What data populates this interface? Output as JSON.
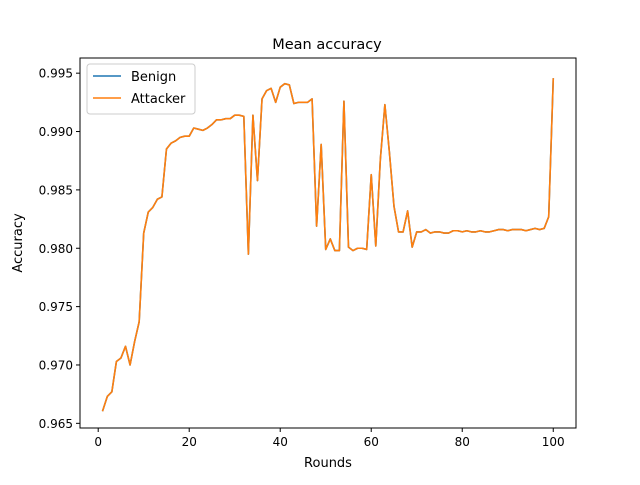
{
  "chart_data": {
    "type": "line",
    "title": "Mean accuracy",
    "xlabel": "Rounds",
    "ylabel": "Accuracy",
    "xlim": [
      -4,
      105
    ],
    "ylim": [
      0.9646,
      0.9963
    ],
    "xticks": [
      0,
      20,
      40,
      60,
      80,
      100
    ],
    "xtick_labels": [
      "0",
      "20",
      "40",
      "60",
      "80",
      "100"
    ],
    "yticks": [
      0.965,
      0.97,
      0.975,
      0.98,
      0.985,
      0.99,
      0.995
    ],
    "ytick_labels": [
      "0.965",
      "0.970",
      "0.975",
      "0.980",
      "0.985",
      "0.990",
      "0.995"
    ],
    "grid": false,
    "legend_position": "top-left",
    "x": [
      1,
      2,
      3,
      4,
      5,
      6,
      7,
      8,
      9,
      10,
      11,
      12,
      13,
      14,
      15,
      16,
      17,
      18,
      19,
      20,
      21,
      22,
      23,
      24,
      25,
      26,
      27,
      28,
      29,
      30,
      31,
      32,
      33,
      34,
      35,
      36,
      37,
      38,
      39,
      40,
      41,
      42,
      43,
      44,
      45,
      46,
      47,
      48,
      49,
      50,
      51,
      52,
      53,
      54,
      55,
      56,
      57,
      58,
      59,
      60,
      61,
      62,
      63,
      64,
      65,
      66,
      67,
      68,
      69,
      70,
      71,
      72,
      73,
      74,
      75,
      76,
      77,
      78,
      79,
      80,
      81,
      82,
      83,
      84,
      85,
      86,
      87,
      88,
      89,
      90,
      91,
      92,
      93,
      94,
      95,
      96,
      97,
      98,
      99,
      100
    ],
    "series": [
      {
        "name": "Benign",
        "color": "#1f77b4",
        "values": [
          0.9661,
          0.9673,
          0.9677,
          0.9703,
          0.9706,
          0.9716,
          0.97,
          0.972,
          0.9737,
          0.9813,
          0.9831,
          0.9835,
          0.9842,
          0.9844,
          0.9885,
          0.989,
          0.9892,
          0.9895,
          0.9896,
          0.9896,
          0.9903,
          0.9902,
          0.9901,
          0.9903,
          0.9906,
          0.991,
          0.991,
          0.9911,
          0.9911,
          0.9914,
          0.9914,
          0.9913,
          0.9795,
          0.9914,
          0.9858,
          0.9928,
          0.9935,
          0.9937,
          0.9925,
          0.9938,
          0.9941,
          0.994,
          0.9924,
          0.9925,
          0.9925,
          0.9925,
          0.9928,
          0.9819,
          0.9889,
          0.9799,
          0.9808,
          0.9798,
          0.9798,
          0.9926,
          0.9801,
          0.9798,
          0.98,
          0.98,
          0.9799,
          0.9863,
          0.9802,
          0.9876,
          0.9923,
          0.9882,
          0.9836,
          0.9814,
          0.9814,
          0.9832,
          0.9801,
          0.9814,
          0.9814,
          0.9816,
          0.9813,
          0.9814,
          0.9814,
          0.9813,
          0.9813,
          0.9815,
          0.9815,
          0.9814,
          0.9815,
          0.9814,
          0.9814,
          0.9815,
          0.9814,
          0.9814,
          0.9815,
          0.9816,
          0.9816,
          0.9815,
          0.9816,
          0.9816,
          0.9816,
          0.9815,
          0.9816,
          0.9817,
          0.9816,
          0.9817,
          0.9827,
          0.9945
        ]
      },
      {
        "name": "Attacker",
        "color": "#ff7f0e",
        "values": [
          0.9661,
          0.9673,
          0.9677,
          0.9703,
          0.9706,
          0.9716,
          0.97,
          0.972,
          0.9737,
          0.9813,
          0.9831,
          0.9835,
          0.9842,
          0.9844,
          0.9885,
          0.989,
          0.9892,
          0.9895,
          0.9896,
          0.9896,
          0.9903,
          0.9902,
          0.9901,
          0.9903,
          0.9906,
          0.991,
          0.991,
          0.9911,
          0.9911,
          0.9914,
          0.9914,
          0.9913,
          0.9795,
          0.9914,
          0.9858,
          0.9928,
          0.9935,
          0.9937,
          0.9925,
          0.9938,
          0.9941,
          0.994,
          0.9924,
          0.9925,
          0.9925,
          0.9925,
          0.9928,
          0.9819,
          0.9889,
          0.9799,
          0.9808,
          0.9798,
          0.9798,
          0.9926,
          0.9801,
          0.9798,
          0.98,
          0.98,
          0.9799,
          0.9863,
          0.9802,
          0.9876,
          0.9923,
          0.9882,
          0.9836,
          0.9814,
          0.9814,
          0.9832,
          0.9801,
          0.9814,
          0.9814,
          0.9816,
          0.9813,
          0.9814,
          0.9814,
          0.9813,
          0.9813,
          0.9815,
          0.9815,
          0.9814,
          0.9815,
          0.9814,
          0.9814,
          0.9815,
          0.9814,
          0.9814,
          0.9815,
          0.9816,
          0.9816,
          0.9815,
          0.9816,
          0.9816,
          0.9816,
          0.9815,
          0.9816,
          0.9817,
          0.9816,
          0.9817,
          0.9827,
          0.9945
        ]
      }
    ]
  }
}
